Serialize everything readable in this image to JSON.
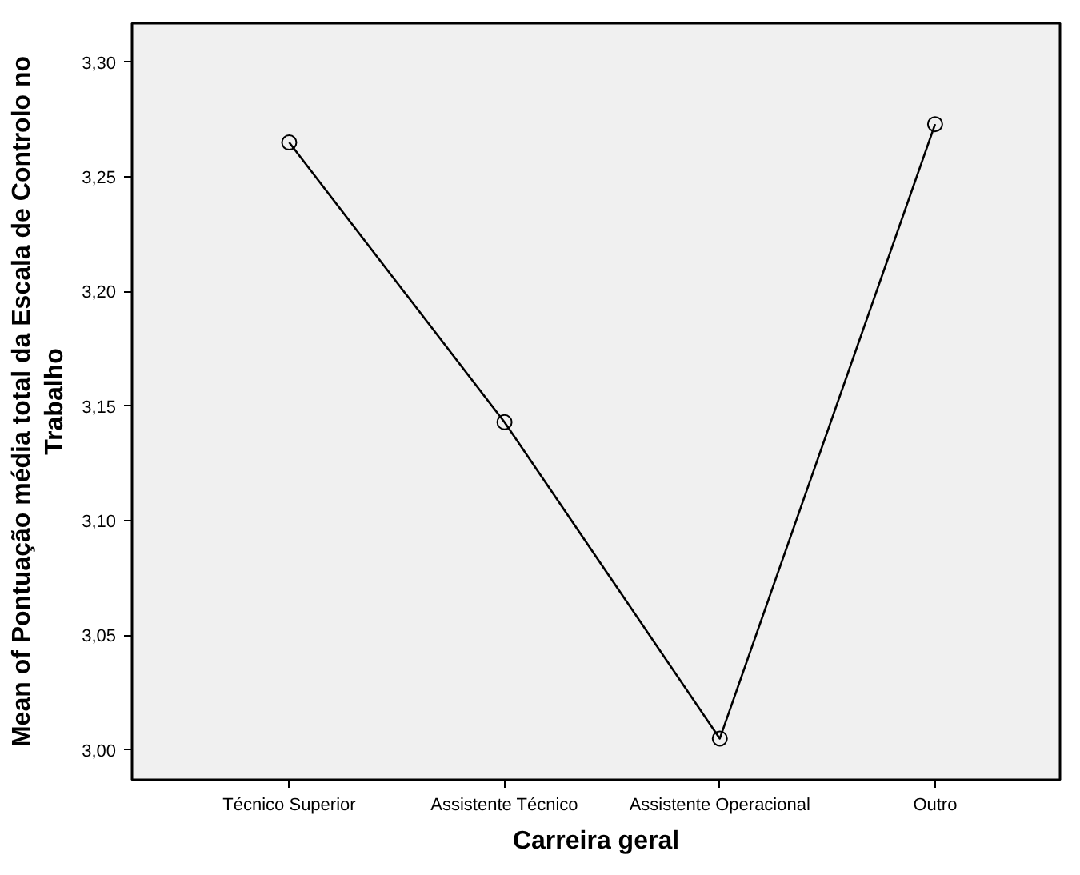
{
  "chart_data": {
    "type": "line",
    "xlabel": "Carreira geral",
    "ylabel": "Mean of Pontuação média total da Escala de Controlo no\nTrabalho",
    "categories": [
      "Técnico Superior",
      "Assistente Técnico",
      "Assistente Operacional",
      "Outro"
    ],
    "series": [
      {
        "color": "#000000",
        "values": [
          3.265,
          3.143,
          3.005,
          3.273
        ]
      }
    ],
    "ylim": [
      2.987,
      3.317
    ],
    "yticks": [
      {
        "value": 3.0,
        "label": "3,00"
      },
      {
        "value": 3.05,
        "label": "3,05"
      },
      {
        "value": 3.1,
        "label": "3,10"
      },
      {
        "value": 3.15,
        "label": "3,15"
      },
      {
        "value": 3.2,
        "label": "3,20"
      },
      {
        "value": 3.25,
        "label": "3,25"
      },
      {
        "value": 3.3,
        "label": "3,30"
      }
    ],
    "grid": false,
    "marker": "circle",
    "line_style": "solid"
  }
}
